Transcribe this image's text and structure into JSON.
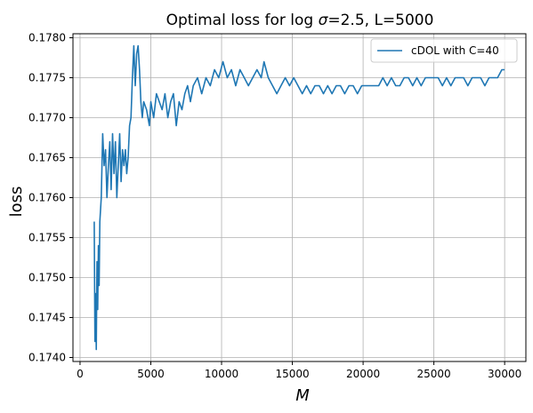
{
  "chart_data": {
    "type": "line",
    "title": "Optimal loss for log σ=2.5, L=5000",
    "title_prefix": "Optimal loss for ",
    "title_log": "log ",
    "title_sigma": "σ",
    "title_suffix": "=2.5, L=5000",
    "xlabel": "M",
    "ylabel": "loss",
    "xlim": [
      -500,
      31500
    ],
    "ylim": [
      0.17395,
      0.17805
    ],
    "xticks": [
      0,
      5000,
      10000,
      15000,
      20000,
      25000,
      30000
    ],
    "xtick_labels": [
      "0",
      "5000",
      "10000",
      "15000",
      "20000",
      "25000",
      "30000"
    ],
    "yticks": [
      0.174,
      0.1745,
      0.175,
      0.1755,
      0.176,
      0.1765,
      0.177,
      0.1775,
      0.178
    ],
    "ytick_labels": [
      "0.1740",
      "0.1745",
      "0.1750",
      "0.1755",
      "0.1760",
      "0.1765",
      "0.1770",
      "0.1775",
      "0.1780"
    ],
    "grid": true,
    "legend_position": "top-right",
    "series": [
      {
        "name": "cDOL with C=40",
        "color": "#1f77b4",
        "x": [
          1000,
          1050,
          1100,
          1150,
          1200,
          1250,
          1300,
          1350,
          1400,
          1500,
          1600,
          1700,
          1800,
          1900,
          2000,
          2100,
          2200,
          2300,
          2400,
          2500,
          2600,
          2700,
          2800,
          2900,
          3000,
          3100,
          3200,
          3300,
          3400,
          3500,
          3600,
          3700,
          3800,
          3900,
          4000,
          4100,
          4200,
          4300,
          4400,
          4500,
          4700,
          4900,
          5000,
          5200,
          5400,
          5600,
          5800,
          6000,
          6200,
          6400,
          6600,
          6800,
          7000,
          7200,
          7400,
          7600,
          7800,
          8000,
          8300,
          8600,
          8900,
          9200,
          9500,
          9800,
          10100,
          10400,
          10700,
          11000,
          11300,
          11600,
          11900,
          12200,
          12500,
          12800,
          13000,
          13300,
          13600,
          13900,
          14200,
          14500,
          14800,
          15100,
          15400,
          15700,
          16000,
          16300,
          16600,
          16900,
          17200,
          17500,
          17800,
          18100,
          18400,
          18700,
          19000,
          19300,
          19600,
          19900,
          20200,
          20500,
          20800,
          21100,
          21400,
          21700,
          22000,
          22300,
          22600,
          22900,
          23200,
          23500,
          23800,
          24100,
          24400,
          24700,
          25000,
          25300,
          25600,
          25900,
          26200,
          26500,
          26800,
          27100,
          27400,
          27700,
          28000,
          28300,
          28600,
          28900,
          29200,
          29500,
          29800,
          30000
        ],
        "values": [
          0.1757,
          0.1742,
          0.1748,
          0.1741,
          0.1752,
          0.1746,
          0.1754,
          0.1749,
          0.1757,
          0.176,
          0.1768,
          0.1764,
          0.1766,
          0.176,
          0.1764,
          0.1767,
          0.1761,
          0.1768,
          0.1763,
          0.1767,
          0.176,
          0.1764,
          0.1768,
          0.1762,
          0.1766,
          0.1764,
          0.1766,
          0.1763,
          0.1765,
          0.1769,
          0.177,
          0.1775,
          0.1779,
          0.1774,
          0.1778,
          0.1779,
          0.1776,
          0.1772,
          0.177,
          0.1772,
          0.1771,
          0.1769,
          0.1772,
          0.177,
          0.1773,
          0.1772,
          0.1771,
          0.1773,
          0.177,
          0.1772,
          0.1773,
          0.1769,
          0.1772,
          0.1771,
          0.1773,
          0.1774,
          0.1772,
          0.1774,
          0.1775,
          0.1773,
          0.1775,
          0.1774,
          0.1776,
          0.1775,
          0.1777,
          0.1775,
          0.1776,
          0.1774,
          0.1776,
          0.1775,
          0.1774,
          0.1775,
          0.1776,
          0.1775,
          0.1777,
          0.1775,
          0.1774,
          0.1773,
          0.1774,
          0.1775,
          0.1774,
          0.1775,
          0.1774,
          0.1773,
          0.1774,
          0.1773,
          0.1774,
          0.1774,
          0.1773,
          0.1774,
          0.1773,
          0.1774,
          0.1774,
          0.1773,
          0.1774,
          0.1774,
          0.1773,
          0.1774,
          0.1774,
          0.1774,
          0.1774,
          0.1774,
          0.1775,
          0.1774,
          0.1775,
          0.1774,
          0.1774,
          0.1775,
          0.1775,
          0.1774,
          0.1775,
          0.1774,
          0.1775,
          0.1775,
          0.1775,
          0.1775,
          0.1774,
          0.1775,
          0.1774,
          0.1775,
          0.1775,
          0.1775,
          0.1774,
          0.1775,
          0.1775,
          0.1775,
          0.1774,
          0.1775,
          0.1775,
          0.1775,
          0.1776,
          0.1776
        ]
      }
    ]
  }
}
